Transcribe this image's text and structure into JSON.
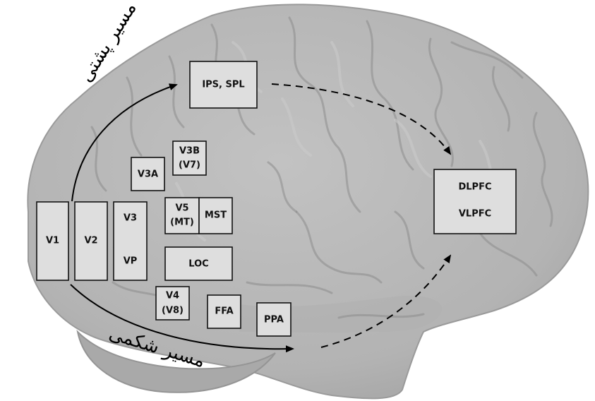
{
  "diagram": {
    "regions": {
      "v1": "V1",
      "v2": "V2",
      "v3": "V3",
      "vp": "VP",
      "v3a": "V3A",
      "v3b_line1": "V3B",
      "v3b_line2": "(V7)",
      "v5_line1": "V5",
      "v5_line2": "(MT)",
      "mst": "MST",
      "loc": "LOC",
      "v4_line1": "V4",
      "v4_line2": "(V8)",
      "ffa": "FFA",
      "ppa": "PPA",
      "ips_spl": "IPS, SPL",
      "dlpfc": "DLPFC",
      "vlpfc": "VLPFC"
    },
    "pathways": {
      "dorsal": "مسیر پشتی",
      "ventral": "مسیر شکمی"
    },
    "colors": {
      "brain": "#b4b4b4",
      "box_fill": "#dedede",
      "box_stroke": "#111111",
      "arrow": "#000000"
    }
  }
}
